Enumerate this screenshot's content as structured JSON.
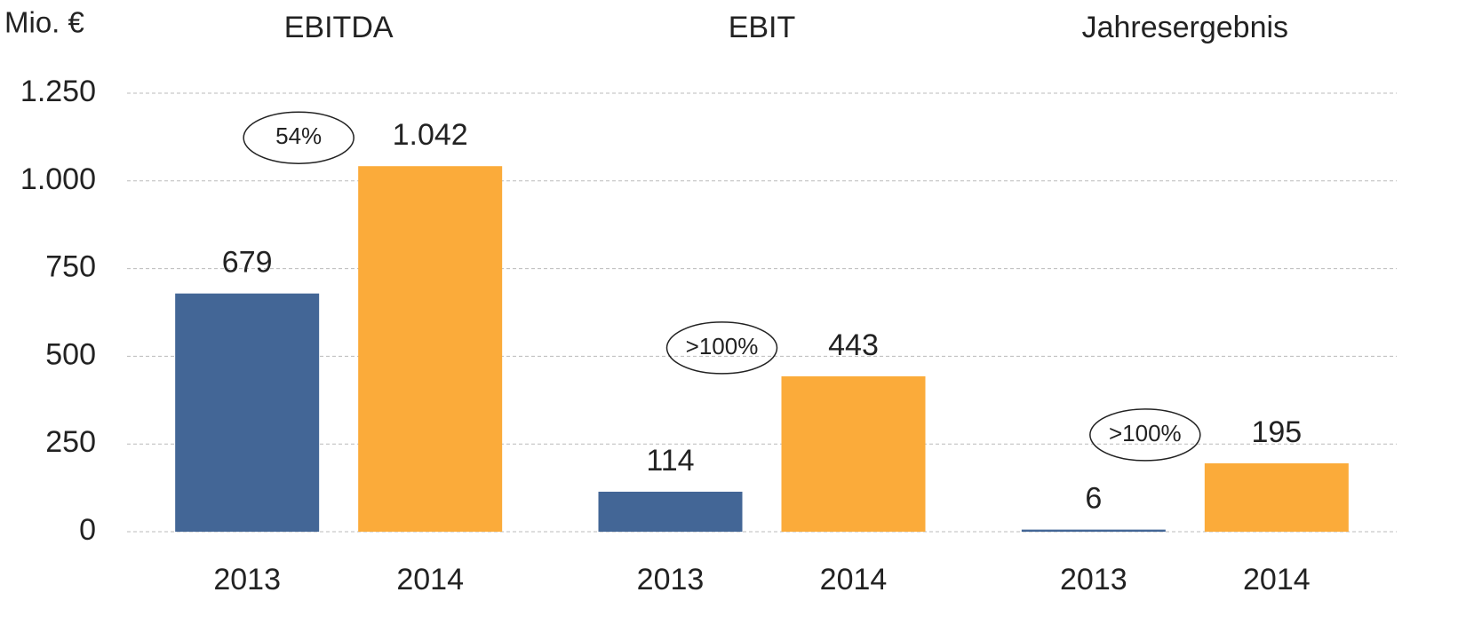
{
  "chart_data": {
    "type": "bar",
    "y_label": "Mio. €",
    "categories": [
      "EBITDA",
      "EBIT",
      "Jahresergebnis"
    ],
    "series": [
      {
        "name": "2013",
        "color": "#436696",
        "values": [
          679,
          114,
          6
        ],
        "value_labels": [
          "679",
          "114",
          "6"
        ]
      },
      {
        "name": "2014",
        "color": "#fbab3a",
        "values": [
          1042,
          443,
          195
        ],
        "value_labels": [
          "1.042",
          "443",
          "195"
        ]
      }
    ],
    "annotations": [
      "54%",
      ">100%",
      ">100%"
    ],
    "ylim": [
      0,
      1250
    ],
    "yticks": [
      0,
      250,
      500,
      750,
      {
        "value": 1000,
        "label": "1.000"
      },
      {
        "value": 1250,
        "label": "1.250"
      }
    ],
    "grid": true
  }
}
